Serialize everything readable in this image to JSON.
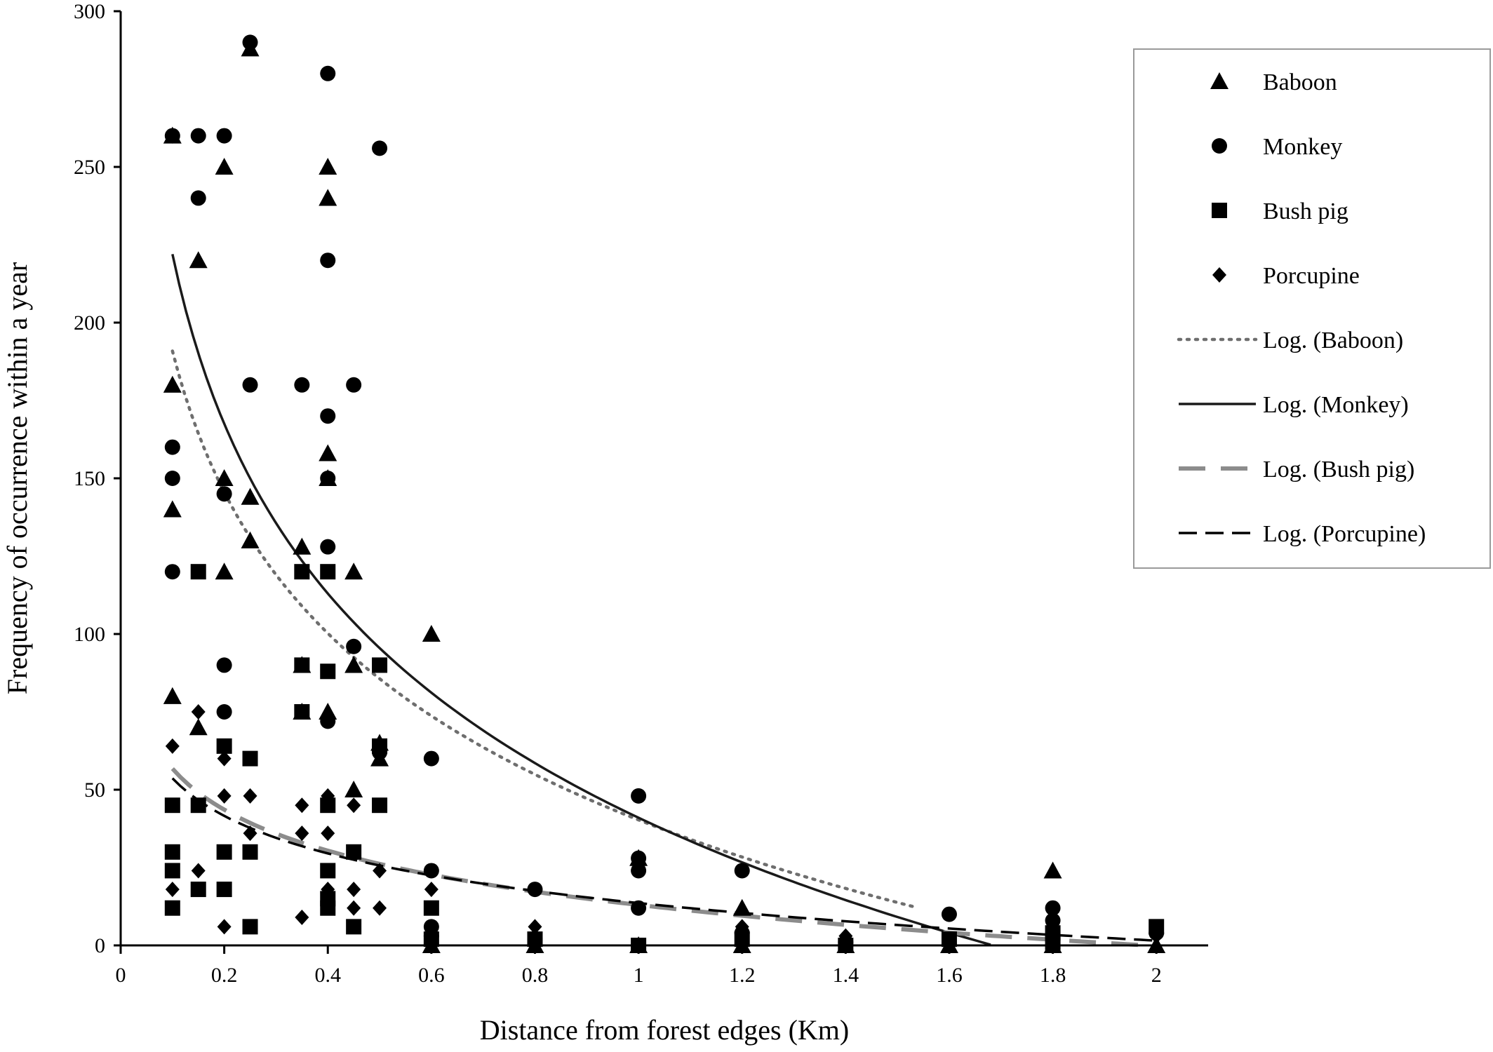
{
  "chart_data": {
    "type": "scatter",
    "xlabel": "Distance from forest edges (Km)",
    "ylabel": "Frequency of occurrence within a year",
    "xlim": [
      0,
      2.1
    ],
    "ylim": [
      0,
      300
    ],
    "x_ticks": [
      "0",
      "0.2",
      "0.4",
      "0.6",
      "0.8",
      "1",
      "1.2",
      "1.4",
      "1.6",
      "1.8",
      "2"
    ],
    "x_tick_values": [
      0,
      0.2,
      0.4,
      0.6,
      0.8,
      1,
      1.2,
      1.4,
      1.6,
      1.8,
      2
    ],
    "y_ticks": [
      "0",
      "50",
      "100",
      "150",
      "200",
      "250",
      "300"
    ],
    "y_tick_values": [
      0,
      50,
      100,
      150,
      200,
      250,
      300
    ],
    "grid": false,
    "legend_position": "top-right",
    "series": [
      {
        "name": "Baboon",
        "marker": "triangle",
        "points": [
          [
            0.1,
            260
          ],
          [
            0.1,
            180
          ],
          [
            0.1,
            140
          ],
          [
            0.1,
            80
          ],
          [
            0.15,
            220
          ],
          [
            0.15,
            70
          ],
          [
            0.2,
            250
          ],
          [
            0.2,
            150
          ],
          [
            0.2,
            120
          ],
          [
            0.25,
            288
          ],
          [
            0.25,
            144
          ],
          [
            0.25,
            130
          ],
          [
            0.35,
            128
          ],
          [
            0.35,
            90
          ],
          [
            0.35,
            75
          ],
          [
            0.4,
            250
          ],
          [
            0.4,
            240
          ],
          [
            0.4,
            158
          ],
          [
            0.4,
            150
          ],
          [
            0.4,
            75
          ],
          [
            0.45,
            120
          ],
          [
            0.45,
            90
          ],
          [
            0.45,
            50
          ],
          [
            0.5,
            65
          ],
          [
            0.5,
            60
          ],
          [
            0.6,
            100
          ],
          [
            0.6,
            0
          ],
          [
            0.8,
            0
          ],
          [
            1,
            28
          ],
          [
            1,
            0
          ],
          [
            1.2,
            12
          ],
          [
            1.2,
            0
          ],
          [
            1.4,
            0
          ],
          [
            1.6,
            0
          ],
          [
            1.8,
            24
          ],
          [
            1.8,
            0
          ],
          [
            2,
            0
          ]
        ]
      },
      {
        "name": "Monkey",
        "marker": "circle",
        "points": [
          [
            0.1,
            260
          ],
          [
            0.1,
            160
          ],
          [
            0.1,
            150
          ],
          [
            0.1,
            120
          ],
          [
            0.15,
            260
          ],
          [
            0.15,
            240
          ],
          [
            0.2,
            260
          ],
          [
            0.2,
            145
          ],
          [
            0.2,
            90
          ],
          [
            0.2,
            75
          ],
          [
            0.25,
            290
          ],
          [
            0.25,
            180
          ],
          [
            0.35,
            180
          ],
          [
            0.4,
            280
          ],
          [
            0.4,
            220
          ],
          [
            0.4,
            170
          ],
          [
            0.4,
            150
          ],
          [
            0.4,
            128
          ],
          [
            0.4,
            72
          ],
          [
            0.45,
            180
          ],
          [
            0.45,
            96
          ],
          [
            0.5,
            256
          ],
          [
            0.5,
            62
          ],
          [
            0.6,
            60
          ],
          [
            0.6,
            24
          ],
          [
            0.6,
            6
          ],
          [
            0.6,
            3
          ],
          [
            0.8,
            18
          ],
          [
            0.8,
            2
          ],
          [
            1,
            48
          ],
          [
            1,
            28
          ],
          [
            1,
            24
          ],
          [
            1,
            12
          ],
          [
            1.2,
            24
          ],
          [
            1.2,
            4
          ],
          [
            1.4,
            1
          ],
          [
            1.6,
            10
          ],
          [
            1.8,
            12
          ],
          [
            1.8,
            8
          ],
          [
            2,
            4
          ]
        ]
      },
      {
        "name": "Bush pig",
        "marker": "square",
        "points": [
          [
            0.1,
            45
          ],
          [
            0.1,
            30
          ],
          [
            0.1,
            24
          ],
          [
            0.1,
            12
          ],
          [
            0.15,
            120
          ],
          [
            0.15,
            45
          ],
          [
            0.15,
            18
          ],
          [
            0.2,
            64
          ],
          [
            0.2,
            30
          ],
          [
            0.2,
            18
          ],
          [
            0.25,
            60
          ],
          [
            0.25,
            30
          ],
          [
            0.25,
            6
          ],
          [
            0.35,
            120
          ],
          [
            0.35,
            90
          ],
          [
            0.35,
            75
          ],
          [
            0.4,
            120
          ],
          [
            0.4,
            88
          ],
          [
            0.4,
            45
          ],
          [
            0.4,
            24
          ],
          [
            0.4,
            15
          ],
          [
            0.4,
            12
          ],
          [
            0.45,
            30
          ],
          [
            0.45,
            6
          ],
          [
            0.5,
            90
          ],
          [
            0.5,
            64
          ],
          [
            0.5,
            45
          ],
          [
            0.6,
            12
          ],
          [
            0.6,
            2
          ],
          [
            0.8,
            2
          ],
          [
            1,
            0
          ],
          [
            1.2,
            2
          ],
          [
            1.4,
            0
          ],
          [
            1.6,
            2
          ],
          [
            1.8,
            4
          ],
          [
            1.8,
            1
          ],
          [
            2,
            6
          ]
        ]
      },
      {
        "name": "Porcupine",
        "marker": "diamond",
        "points": [
          [
            0.1,
            64
          ],
          [
            0.1,
            18
          ],
          [
            0.15,
            75
          ],
          [
            0.15,
            24
          ],
          [
            0.2,
            60
          ],
          [
            0.2,
            48
          ],
          [
            0.2,
            6
          ],
          [
            0.25,
            48
          ],
          [
            0.25,
            36
          ],
          [
            0.35,
            45
          ],
          [
            0.35,
            36
          ],
          [
            0.35,
            9
          ],
          [
            0.4,
            48
          ],
          [
            0.4,
            36
          ],
          [
            0.4,
            18
          ],
          [
            0.4,
            15
          ],
          [
            0.45,
            45
          ],
          [
            0.45,
            18
          ],
          [
            0.45,
            12
          ],
          [
            0.5,
            24
          ],
          [
            0.5,
            12
          ],
          [
            0.6,
            18
          ],
          [
            0.8,
            6
          ],
          [
            0.8,
            3
          ],
          [
            1.2,
            6
          ],
          [
            1.4,
            3
          ],
          [
            1.8,
            3
          ],
          [
            2,
            3
          ]
        ]
      }
    ],
    "trendlines": [
      {
        "name": "Log. (Baboon)",
        "type": "logarithmic",
        "a": -65.4,
        "b": 40.3,
        "x_range": [
          0.1,
          1.53
        ],
        "style": "dotted",
        "color": "#6e6e6e"
      },
      {
        "name": "Log. (Monkey)",
        "type": "logarithmic",
        "a": -78.6,
        "b": 41.0,
        "x_range": [
          0.1,
          1.68
        ],
        "style": "solid",
        "color": "#1a1a1a"
      },
      {
        "name": "Log. (Bush pig)",
        "type": "logarithmic",
        "a": -19.0,
        "b": 13.0,
        "x_range": [
          0.1,
          1.98
        ],
        "style": "long-dash",
        "color": "#8c8c8c"
      },
      {
        "name": "Log. (Porcupine)",
        "type": "logarithmic",
        "a": -17.4,
        "b": 13.6,
        "x_range": [
          0.1,
          2.0
        ],
        "style": "dash",
        "color": "#000000"
      }
    ],
    "legend": [
      {
        "label": "Baboon",
        "kind": "marker",
        "marker": "triangle"
      },
      {
        "label": "Monkey",
        "kind": "marker",
        "marker": "circle"
      },
      {
        "label": "Bush pig",
        "kind": "marker",
        "marker": "square"
      },
      {
        "label": "Porcupine",
        "kind": "marker",
        "marker": "diamond"
      },
      {
        "label": "Log. (Baboon)",
        "kind": "line",
        "style": "dotted",
        "color": "#6e6e6e"
      },
      {
        "label": "Log. (Monkey)",
        "kind": "line",
        "style": "solid",
        "color": "#1a1a1a"
      },
      {
        "label": "Log. (Bush pig)",
        "kind": "line",
        "style": "long-dash",
        "color": "#8c8c8c"
      },
      {
        "label": "Log. (Porcupine)",
        "kind": "line",
        "style": "dash",
        "color": "#000000"
      }
    ]
  }
}
